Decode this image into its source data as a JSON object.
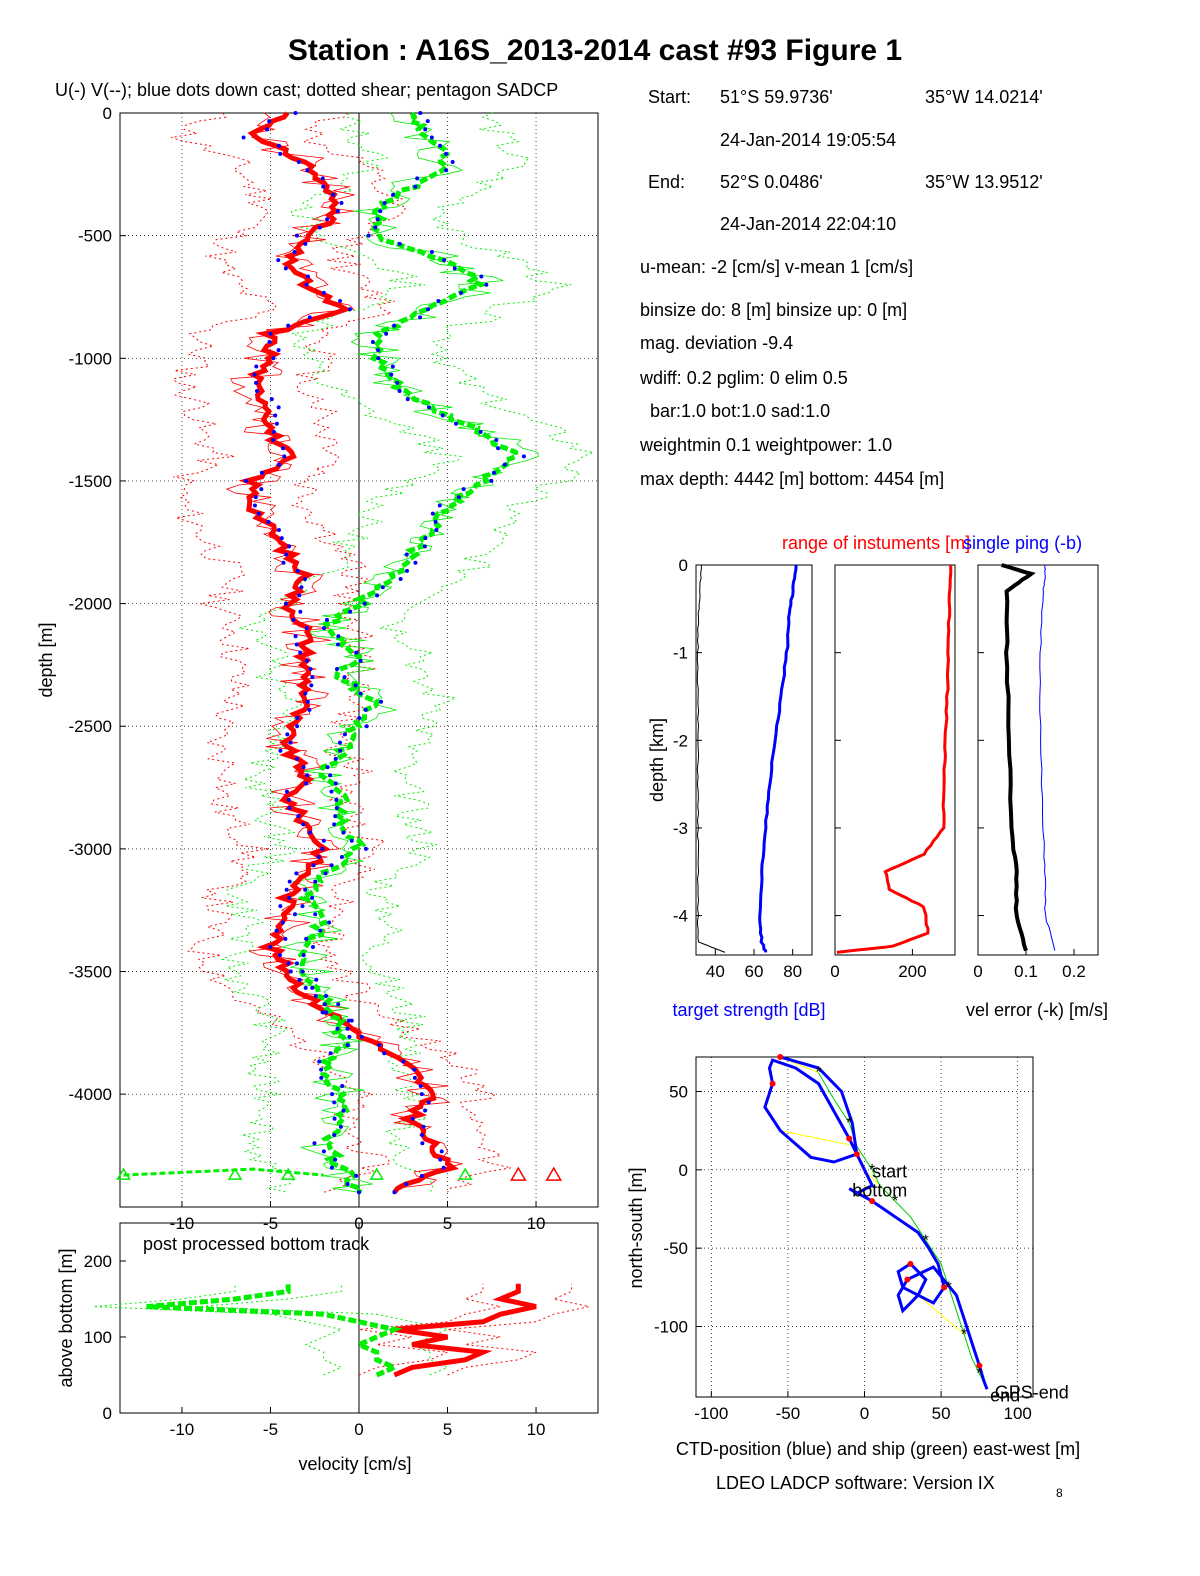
{
  "title": "Station : A16S_2013-2014 cast #93  Figure 1",
  "legend_caption": "U(-) V(--); blue dots down cast; dotted shear; pentagon SADCP",
  "info": {
    "start_label": "Start:",
    "start_lat": "51°S 59.9736'",
    "start_lon": "35°W 14.0214'",
    "start_time": "24-Jan-2014 19:05:54",
    "end_label": "End:",
    "end_lat": "52°S  0.0486'",
    "end_lon": "35°W 13.9512'",
    "end_time": "24-Jan-2014 22:04:10",
    "means": "u-mean:  -2 [cm/s]    v-mean   1 [cm/s]",
    "binsize": "binsize do: 8 [m]  binsize up:  0 [m]",
    "magdev": "mag. deviation -9.4",
    "wdiff": "wdiff: 0.2  pglim: 0  elim 0.5",
    "bar": "  bar:1.0 bot:1.0 sad:1.0",
    "weight": "weightmin 0.1  weightpower: 1.0",
    "maxdepth": "max depth: 4442 [m]   bottom: 4454 [m]"
  },
  "colors": {
    "u": "#ff0000",
    "v": "#00ee00",
    "down_cast": "#0000ff",
    "target_strength": "#0000ff",
    "range": "#ff0000",
    "vel_error": "#000000",
    "single_ping": "#0000ff",
    "ctd_track": "#0000ff",
    "ship_track": "#00cc00",
    "connector": "#ffff00"
  },
  "chart_data": [
    {
      "id": "profile",
      "type": "line",
      "xlabel": "",
      "ylabel": "depth [m]",
      "xlim": [
        -13.5,
        13.5
      ],
      "ylim": [
        -4460,
        0
      ],
      "x_ticks": [
        -10,
        -5,
        0,
        5,
        10
      ],
      "y_ticks": [
        0,
        -500,
        -1000,
        -1500,
        -2000,
        -2500,
        -3000,
        -3500,
        -4000
      ],
      "grid": true,
      "depth": [
        0,
        -100,
        -200,
        -300,
        -400,
        -500,
        -600,
        -700,
        -800,
        -900,
        -1000,
        -1100,
        -1200,
        -1300,
        -1400,
        -1500,
        -1600,
        -1700,
        -1800,
        -1900,
        -2000,
        -2100,
        -2200,
        -2300,
        -2400,
        -2500,
        -2600,
        -2700,
        -2800,
        -2900,
        -3000,
        -3100,
        -3200,
        -3300,
        -3400,
        -3500,
        -3600,
        -3700,
        -3800,
        -3900,
        -4000,
        -4100,
        -4200,
        -4300,
        -4400
      ],
      "series": [
        {
          "name": "U",
          "values": [
            -4,
            -6,
            -3,
            -2,
            -1,
            -3,
            -4,
            -3,
            -1,
            -5,
            -5,
            -6,
            -5,
            -5,
            -4,
            -6,
            -6,
            -5,
            -4,
            -3,
            -4,
            -3,
            -3,
            -3,
            -3,
            -4,
            -4,
            -3,
            -4,
            -3,
            -2,
            -3,
            -4,
            -4,
            -5,
            -4,
            -3,
            -1,
            1,
            3,
            4,
            3,
            4,
            5,
            2
          ]
        },
        {
          "name": "V",
          "values": [
            3,
            4,
            5,
            3,
            1,
            1,
            5,
            7,
            4,
            1,
            1,
            2,
            4,
            7,
            9,
            7,
            5,
            4,
            3,
            2,
            0,
            -2,
            0,
            -1,
            1,
            0,
            -1,
            -2,
            -1,
            -1,
            0,
            -2,
            -3,
            -2,
            -3,
            -3,
            -2,
            -1,
            -1,
            -2,
            -1,
            -1,
            -2,
            -1,
            0
          ]
        }
      ]
    },
    {
      "id": "bottom_track",
      "type": "line",
      "annotation": "post processed bottom track",
      "xlabel": "velocity [cm/s]",
      "ylabel": "above bottom [m]",
      "xlim": [
        -13.5,
        13.5
      ],
      "ylim": [
        0,
        250
      ],
      "x_ticks": [
        -10,
        -5,
        0,
        5,
        10
      ],
      "y_ticks": [
        0,
        100,
        200
      ],
      "height": [
        50,
        60,
        70,
        80,
        90,
        100,
        110,
        120,
        130,
        140,
        150,
        160,
        170
      ],
      "series": [
        {
          "name": "U",
          "values": [
            2,
            3,
            6,
            7,
            3,
            5,
            2,
            7,
            8,
            10,
            8,
            9,
            9
          ]
        },
        {
          "name": "V",
          "values": [
            1,
            2,
            1,
            1,
            0,
            1,
            2,
            0,
            -2,
            -12,
            -7,
            -4,
            -4
          ]
        }
      ]
    },
    {
      "id": "target_strength",
      "type": "line",
      "xlabel": "target strength [dB]",
      "ylabel": "depth [km]",
      "xlim": [
        30,
        90
      ],
      "ylim": [
        -4.45,
        0
      ],
      "x_ticks": [
        40,
        60,
        80
      ],
      "y_ticks": [
        0,
        -1,
        -2,
        -3,
        -4
      ],
      "depth": [
        0,
        -0.3,
        -0.6,
        -1.0,
        -1.5,
        -2.0,
        -2.5,
        -3.0,
        -3.5,
        -4.0,
        -4.3,
        -4.42
      ],
      "series": [
        {
          "name": "down",
          "values": [
            82,
            80,
            78,
            77,
            74,
            71,
            68,
            66,
            64,
            63,
            64,
            66
          ]
        },
        {
          "name": "up",
          "values": [
            33,
            32,
            31,
            31,
            31,
            31,
            31,
            31,
            31,
            31,
            31,
            45
          ]
        }
      ]
    },
    {
      "id": "range",
      "type": "line",
      "title": "range of instuments [m]",
      "xlim": [
        0,
        310
      ],
      "ylim": [
        -4.45,
        0
      ],
      "x_ticks": [
        0,
        200
      ],
      "y_ticks": [
        0,
        -1,
        -2,
        -3,
        -4
      ],
      "depth": [
        0,
        -0.5,
        -1.0,
        -1.5,
        -2.0,
        -2.5,
        -3.0,
        -3.3,
        -3.5,
        -3.7,
        -3.9,
        -4.2,
        -4.35,
        -4.42
      ],
      "series": [
        {
          "name": "range",
          "values": [
            300,
            295,
            292,
            290,
            285,
            282,
            280,
            230,
            130,
            140,
            230,
            240,
            150,
            5
          ]
        }
      ]
    },
    {
      "id": "vel_error",
      "type": "line",
      "title": "single ping (-b)",
      "xlabel": "vel error (-k) [m/s]",
      "xlim": [
        0,
        0.25
      ],
      "ylim": [
        -4.45,
        0
      ],
      "x_ticks": [
        0,
        0.1,
        0.2
      ],
      "y_ticks": [
        0,
        -1,
        -2,
        -3,
        -4
      ],
      "depth": [
        0,
        -0.1,
        -0.3,
        -1.0,
        -2.0,
        -3.0,
        -3.5,
        -4.0,
        -4.4
      ],
      "series": [
        {
          "name": "vel error",
          "values": [
            0.05,
            0.11,
            0.06,
            0.06,
            0.065,
            0.07,
            0.08,
            0.08,
            0.1
          ]
        },
        {
          "name": "single ping",
          "values": [
            0.14,
            0.14,
            0.135,
            0.13,
            0.13,
            0.135,
            0.14,
            0.14,
            0.16
          ]
        }
      ]
    },
    {
      "id": "position",
      "type": "line",
      "xlabel": "CTD-position (blue) and ship (green) east-west [m]",
      "ylabel": "north-south [m]",
      "xlim": [
        -110,
        110
      ],
      "ylim": [
        -145,
        72
      ],
      "x_ticks": [
        -100,
        -50,
        0,
        50,
        100
      ],
      "y_ticks": [
        50,
        0,
        -50,
        -100
      ],
      "grid": true,
      "labels": [
        "start",
        "bottom",
        "GPS-end",
        "end"
      ],
      "series": [
        {
          "name": "CTD",
          "x": [
            -55,
            -48,
            -30,
            -15,
            -8,
            -5,
            -20,
            -35,
            -55,
            -65,
            -60,
            -62,
            -60,
            -45,
            -30,
            -10,
            0,
            5,
            -5,
            -10,
            5,
            20,
            35,
            42,
            48,
            52,
            45,
            35,
            25,
            22,
            30,
            40,
            35,
            25,
            22,
            28,
            45,
            60,
            65,
            70,
            75,
            78,
            80
          ],
          "y": [
            72,
            70,
            65,
            50,
            30,
            10,
            5,
            8,
            25,
            40,
            55,
            65,
            70,
            65,
            55,
            20,
            0,
            -10,
            -15,
            -12,
            -20,
            -30,
            -40,
            -50,
            -60,
            -75,
            -85,
            -80,
            -75,
            -65,
            -60,
            -70,
            -80,
            -90,
            -80,
            -70,
            -62,
            -80,
            -95,
            -110,
            -125,
            -135,
            -140
          ]
        },
        {
          "name": "ship",
          "x": [
            -30,
            -20,
            -10,
            -5,
            5,
            10,
            20,
            30,
            40,
            50,
            55,
            60,
            65,
            70,
            75,
            80
          ],
          "y": [
            62,
            45,
            30,
            15,
            0,
            -10,
            -20,
            -30,
            -45,
            -60,
            -75,
            -90,
            -105,
            -120,
            -130,
            -140
          ]
        }
      ]
    }
  ]
}
